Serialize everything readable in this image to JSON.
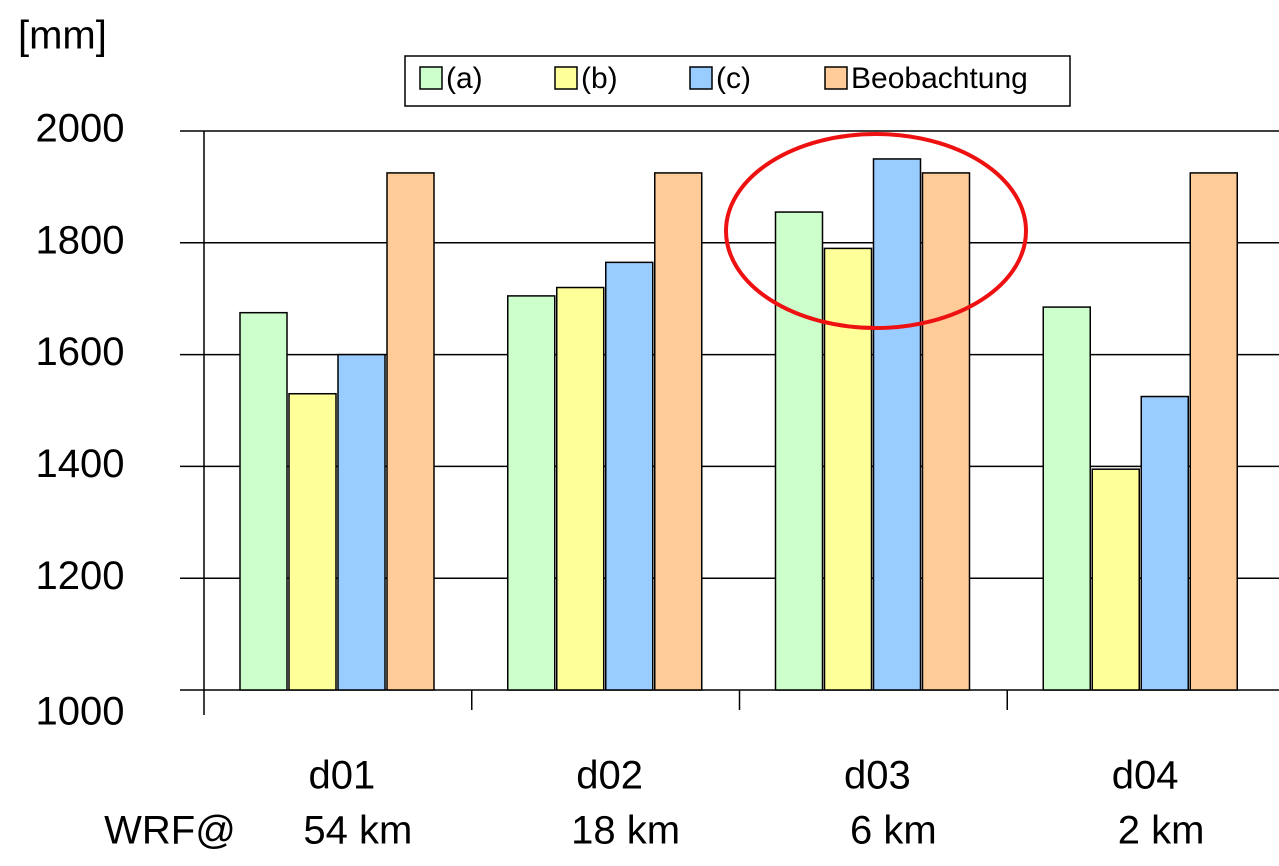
{
  "chart_data": {
    "type": "bar",
    "y_unit_label": "[mm]",
    "categories": [
      "d01",
      "d02",
      "d03",
      "d04"
    ],
    "resolution_prefix": "WRF@",
    "resolutions": [
      "54 km",
      "18 km",
      "6 km",
      "2 km"
    ],
    "series": [
      {
        "name": "(a)",
        "color": "#ccffcc",
        "values": [
          1675,
          1705,
          1855,
          1685
        ]
      },
      {
        "name": "(b)",
        "color": "#ffff99",
        "values": [
          1530,
          1720,
          1790,
          1395
        ]
      },
      {
        "name": "(c)",
        "color": "#99ccff",
        "values": [
          1600,
          1765,
          1950,
          1525
        ]
      },
      {
        "name": "Beobachtung",
        "color": "#ffcc99",
        "values": [
          1925,
          1925,
          1925,
          1925
        ]
      }
    ],
    "ylim": [
      1000,
      2000
    ],
    "yticks": [
      1000,
      1200,
      1400,
      1600,
      1800,
      2000
    ],
    "grid": true,
    "legend": "top"
  }
}
